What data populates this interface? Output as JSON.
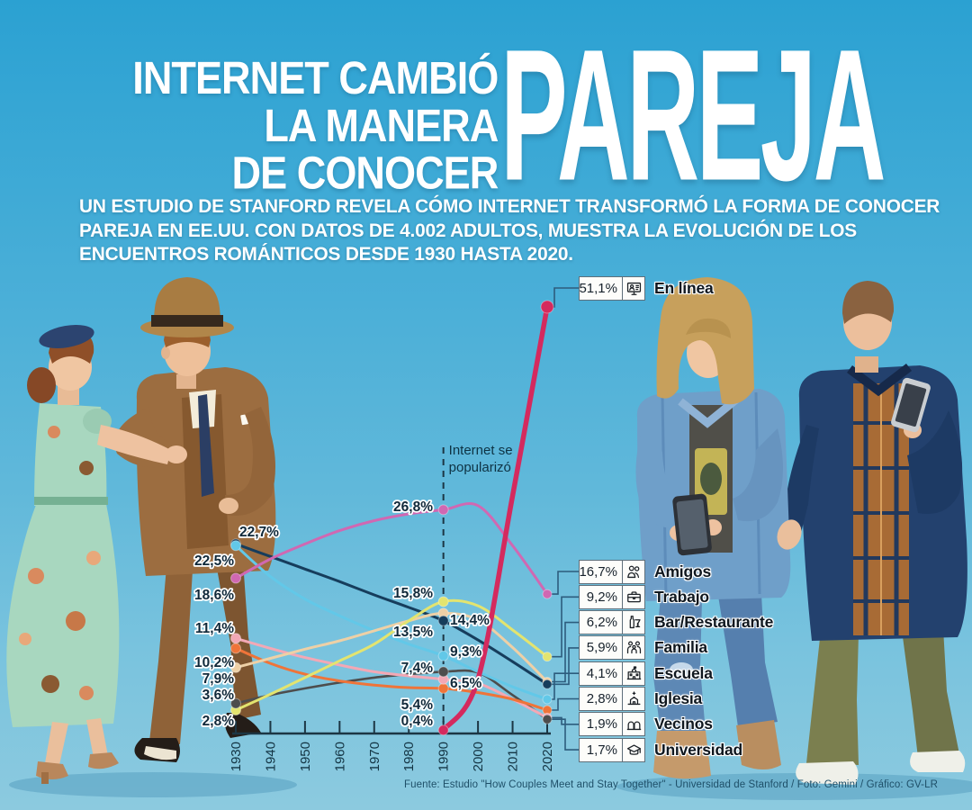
{
  "header": {
    "title_lines": [
      "INTERNET CAMBIÓ",
      "LA MANERA",
      "DE CONOCER"
    ],
    "title_highlight": "PAREJA",
    "subtitle_lines": [
      "UN ESTUDIO DE STANFORD REVELA CÓMO INTERNET TRANSFORMÓ LA FORMA DE CONOCER",
      "PAREJA EN EE.UU. CON DATOS DE 4.002 ADULTOS, MUESTRA LA EVOLUCIÓN DE LOS",
      "ENCUENTROS ROMÁNTICOS DESDE 1930 HASTA 2020."
    ]
  },
  "footer": {
    "source": "Fuente: Estudio \"How Couples Meet and Stay Together\" - Universidad de Stanford / Foto: Gemini / Gráfico: GV-LR"
  },
  "colors": {
    "background_top": "#2ba1d2",
    "background_bottom": "#8ccadf",
    "axis": "#1c3644",
    "connector": "#2d5c7d",
    "label": "#10293a"
  },
  "chart_data": {
    "type": "line",
    "title": "Evolución de los encuentros románticos en EE.UU. 1930-2020 (% de parejas según cómo se conocieron)",
    "xlabel": "",
    "ylabel": "",
    "ylim": [
      0,
      55
    ],
    "grid": false,
    "legend_position": "right",
    "x_ticks": [
      "1930",
      "1940",
      "1950",
      "1960",
      "1970",
      "1980",
      "1990",
      "2000",
      "2010",
      "2020"
    ],
    "annotation": {
      "lines": [
        "Internet se",
        "popularizó"
      ],
      "year": 1990
    },
    "series": [
      {
        "name": "En línea",
        "icon": "online-icon",
        "color": "#d42a5e",
        "width": 5.5,
        "points": [
          [
            1990,
            0.4
          ],
          [
            2000,
            6.5
          ],
          [
            2010,
            28.5
          ],
          [
            2020,
            51.1
          ]
        ],
        "value_labels": [
          {
            "year": 1990,
            "text": "0,4%"
          }
        ]
      },
      {
        "name": "Amigos",
        "icon": "friends-icon",
        "color": "#d068b2",
        "width": 3,
        "points": [
          [
            1930,
            18.6
          ],
          [
            1940,
            20.9
          ],
          [
            1950,
            22.7
          ],
          [
            1960,
            24.3
          ],
          [
            1970,
            25.5
          ],
          [
            1980,
            26.3
          ],
          [
            1990,
            26.8
          ],
          [
            2000,
            27.3
          ],
          [
            2010,
            22.5
          ],
          [
            2020,
            16.7
          ]
        ],
        "value_labels": [
          {
            "year": 1930,
            "text": "18,6%"
          },
          {
            "year": 1990,
            "text": "26,8%"
          }
        ]
      },
      {
        "name": "Trabajo",
        "icon": "briefcase-icon",
        "color": "#e3e46f",
        "width": 3,
        "points": [
          [
            1930,
            2.8
          ],
          [
            1940,
            4.7
          ],
          [
            1950,
            6.7
          ],
          [
            1960,
            8.7
          ],
          [
            1970,
            10.7
          ],
          [
            1980,
            13.5
          ],
          [
            1990,
            15.8
          ],
          [
            2000,
            15.3
          ],
          [
            2010,
            12.4
          ],
          [
            2020,
            9.2
          ]
        ],
        "value_labels": [
          {
            "year": 1930,
            "text": "2,8%"
          },
          {
            "year": 1990,
            "text": "15,8%"
          }
        ]
      },
      {
        "name": "Bar/Restaurante",
        "icon": "bar-icon",
        "color": "#eed0a6",
        "width": 3,
        "points": [
          [
            1930,
            7.9
          ],
          [
            1940,
            9.0
          ],
          [
            1950,
            10.1
          ],
          [
            1960,
            11.1
          ],
          [
            1970,
            12.3
          ],
          [
            1980,
            13.5
          ],
          [
            1990,
            14.4
          ],
          [
            2000,
            13.6
          ],
          [
            2010,
            10.3
          ],
          [
            2020,
            6.2
          ]
        ],
        "value_labels": [
          {
            "year": 1930,
            "text": "7,9%"
          },
          {
            "year": 1990,
            "text": "14,4%"
          }
        ]
      },
      {
        "name": "Familia",
        "icon": "family-icon",
        "color": "#163d5c",
        "width": 3,
        "points": [
          [
            1930,
            22.7
          ],
          [
            1940,
            21.2
          ],
          [
            1950,
            19.7
          ],
          [
            1960,
            18.2
          ],
          [
            1970,
            16.6
          ],
          [
            1980,
            15.1
          ],
          [
            1990,
            13.5
          ],
          [
            2000,
            11.2
          ],
          [
            2010,
            8.6
          ],
          [
            2020,
            5.9
          ]
        ],
        "value_labels": [
          {
            "year": 1930,
            "text": "22,7%"
          },
          {
            "year": 1990,
            "text": "13,5%"
          }
        ]
      },
      {
        "name": "Escuela",
        "icon": "school-icon",
        "color": "#62c8e8",
        "width": 3,
        "points": [
          [
            1930,
            22.5
          ],
          [
            1940,
            18.8
          ],
          [
            1950,
            16.1
          ],
          [
            1960,
            14.1
          ],
          [
            1970,
            12.3
          ],
          [
            1980,
            10.7
          ],
          [
            1990,
            9.3
          ],
          [
            2000,
            7.4
          ],
          [
            2010,
            5.6
          ],
          [
            2020,
            4.1
          ]
        ],
        "value_labels": [
          {
            "year": 1930,
            "text": "22,5%"
          },
          {
            "year": 1990,
            "text": "9,3%"
          }
        ]
      },
      {
        "name": "Iglesia",
        "icon": "church-icon",
        "color": "#ef7439",
        "width": 3,
        "points": [
          [
            1930,
            10.2
          ],
          [
            1940,
            8.4
          ],
          [
            1950,
            7.1
          ],
          [
            1960,
            6.3
          ],
          [
            1970,
            5.8
          ],
          [
            1980,
            5.5
          ],
          [
            1990,
            5.4
          ],
          [
            2000,
            4.9
          ],
          [
            2010,
            4.1
          ],
          [
            2020,
            2.8
          ]
        ],
        "value_labels": [
          {
            "year": 1930,
            "text": "10,2%"
          },
          {
            "year": 1990,
            "text": "5,4%"
          }
        ]
      },
      {
        "name": "Vecinos",
        "icon": "neighbors-icon",
        "color": "#f3a8b5",
        "width": 3,
        "points": [
          [
            1930,
            11.4
          ],
          [
            1940,
            10.2
          ],
          [
            1950,
            9.1
          ],
          [
            1960,
            8.2
          ],
          [
            1970,
            7.4
          ],
          [
            1980,
            6.9
          ],
          [
            1990,
            6.5
          ],
          [
            2000,
            6.0
          ],
          [
            2010,
            4.1
          ],
          [
            2020,
            1.9
          ]
        ],
        "value_labels": [
          {
            "year": 1930,
            "text": "11,4%"
          },
          {
            "year": 1990,
            "text": "6,5%"
          }
        ]
      },
      {
        "name": "Universidad",
        "icon": "university-icon",
        "color": "#4d4d4d",
        "width": 2.6,
        "points": [
          [
            1930,
            3.6
          ],
          [
            1940,
            4.6
          ],
          [
            1950,
            5.4
          ],
          [
            1960,
            6.1
          ],
          [
            1970,
            6.7
          ],
          [
            1980,
            7.1
          ],
          [
            1990,
            7.4
          ],
          [
            2000,
            7.3
          ],
          [
            2010,
            4.6
          ],
          [
            2020,
            1.7
          ]
        ],
        "value_labels": [
          {
            "year": 1930,
            "text": "3,6%"
          },
          {
            "year": 1990,
            "text": "7,4%"
          }
        ]
      }
    ]
  },
  "legend": {
    "items": [
      {
        "pct": "51,1%",
        "label": "En línea",
        "icon": "online-icon"
      },
      {
        "pct": "16,7%",
        "label": "Amigos",
        "icon": "friends-icon"
      },
      {
        "pct": "9,2%",
        "label": "Trabajo",
        "icon": "briefcase-icon"
      },
      {
        "pct": "6,2%",
        "label": "Bar/Restaurante",
        "icon": "bar-icon"
      },
      {
        "pct": "5,9%",
        "label": "Familia",
        "icon": "family-icon"
      },
      {
        "pct": "4,1%",
        "label": "Escuela",
        "icon": "school-icon"
      },
      {
        "pct": "2,8%",
        "label": "Iglesia",
        "icon": "church-icon"
      },
      {
        "pct": "1,9%",
        "label": "Vecinos",
        "icon": "neighbors-icon"
      },
      {
        "pct": "1,7%",
        "label": "Universidad",
        "icon": "university-icon"
      }
    ]
  }
}
